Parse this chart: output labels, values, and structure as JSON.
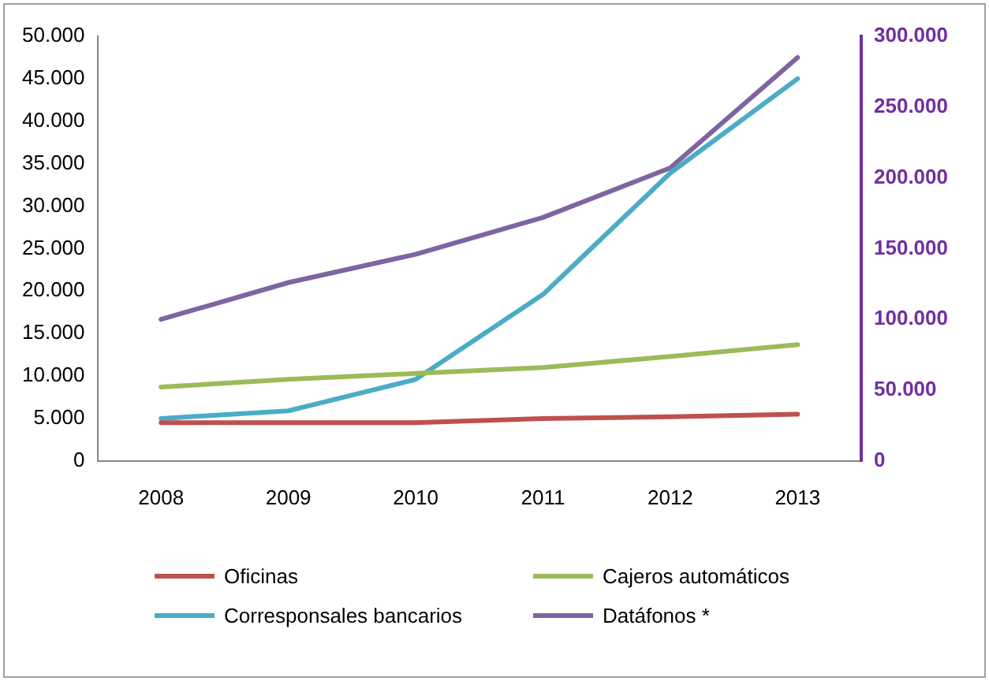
{
  "chart_data": {
    "type": "line",
    "categories": [
      "2008",
      "2009",
      "2010",
      "2011",
      "2012",
      "2013"
    ],
    "series": [
      {
        "name": "Oficinas",
        "color": "#c0504d",
        "values": [
          4500,
          4500,
          4500,
          5000,
          5200,
          5500
        ]
      },
      {
        "name": "Cajeros automáticos",
        "color": "#9bbb59",
        "values": [
          8700,
          9600,
          10300,
          11000,
          12300,
          13700
        ]
      },
      {
        "name": "Corresponsales bancarios",
        "color": "#4bacc6",
        "values": [
          5000,
          5900,
          9600,
          19600,
          33900,
          45000
        ]
      },
      {
        "name": "Datáfonos *",
        "color": "#8064a2",
        "axis": "y2",
        "values": [
          100000,
          126000,
          146000,
          172000,
          207000,
          285000
        ]
      }
    ],
    "ylim": [
      0,
      50000
    ],
    "yticks": [
      0,
      {
        "value": 5000,
        "label": "5.000"
      },
      {
        "value": 10000,
        "label": "10.000"
      },
      {
        "value": 15000,
        "label": "15.000"
      },
      {
        "value": 20000,
        "label": "20.000"
      },
      {
        "value": 25000,
        "label": "25.000"
      },
      {
        "value": 30000,
        "label": "30.000"
      },
      {
        "value": 35000,
        "label": "35.000"
      },
      {
        "value": 40000,
        "label": "40.000"
      },
      {
        "value": 45000,
        "label": "45.000"
      },
      {
        "value": 50000,
        "label": "50.000"
      }
    ],
    "y2lim": [
      0,
      300000
    ],
    "y2ticks": [
      0,
      {
        "value": 50000,
        "label": "50.000"
      },
      {
        "value": 100000,
        "label": "100.000"
      },
      {
        "value": 150000,
        "label": "150.000"
      },
      {
        "value": 200000,
        "label": "200.000"
      },
      {
        "value": 250000,
        "label": "250.000"
      },
      {
        "value": 300000,
        "label": "300.000"
      }
    ],
    "grid": false,
    "legend": "bottom",
    "marker": "none",
    "line_style": "solid"
  }
}
